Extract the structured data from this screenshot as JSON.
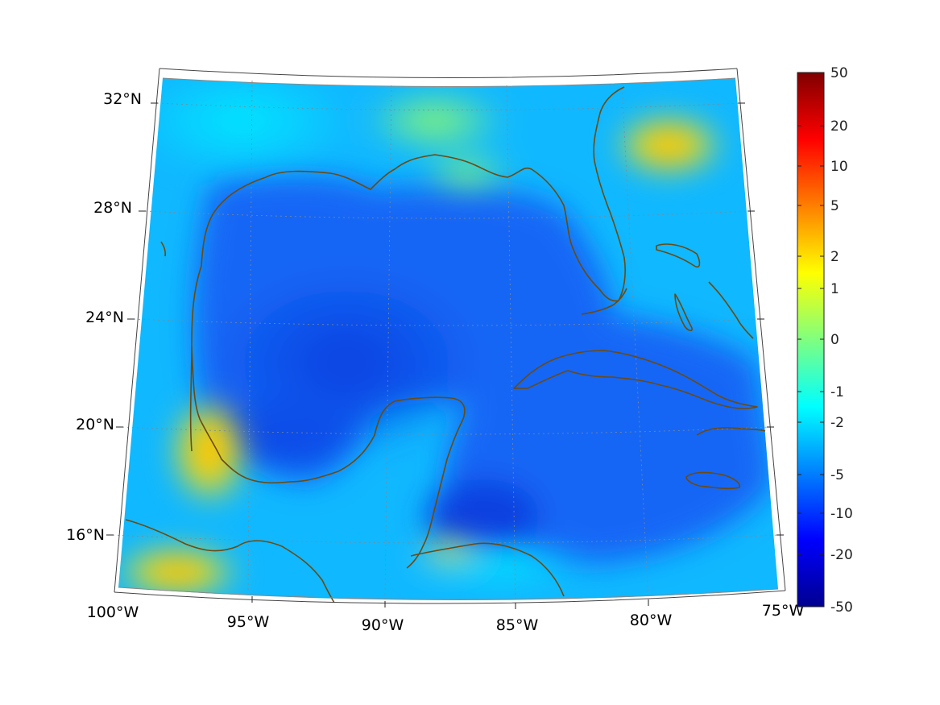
{
  "map": {
    "lat_labels": [
      "32°N",
      "28°N",
      "24°N",
      "20°N",
      "16°N"
    ],
    "lon_labels": [
      "100°W",
      "95°W",
      "90°W",
      "85°W",
      "80°W",
      "75°W"
    ],
    "coastline_color": "#6b4a12",
    "ocean_base_color": "#1f6fff",
    "land_base_color": "#19e6ff"
  },
  "colorbar": {
    "tick_labels": [
      "50",
      "20",
      "10",
      "5",
      "2",
      "1",
      "0",
      "-1",
      "-2",
      "-5",
      "-10",
      "-20",
      "-50"
    ],
    "colormap": "jet"
  }
}
